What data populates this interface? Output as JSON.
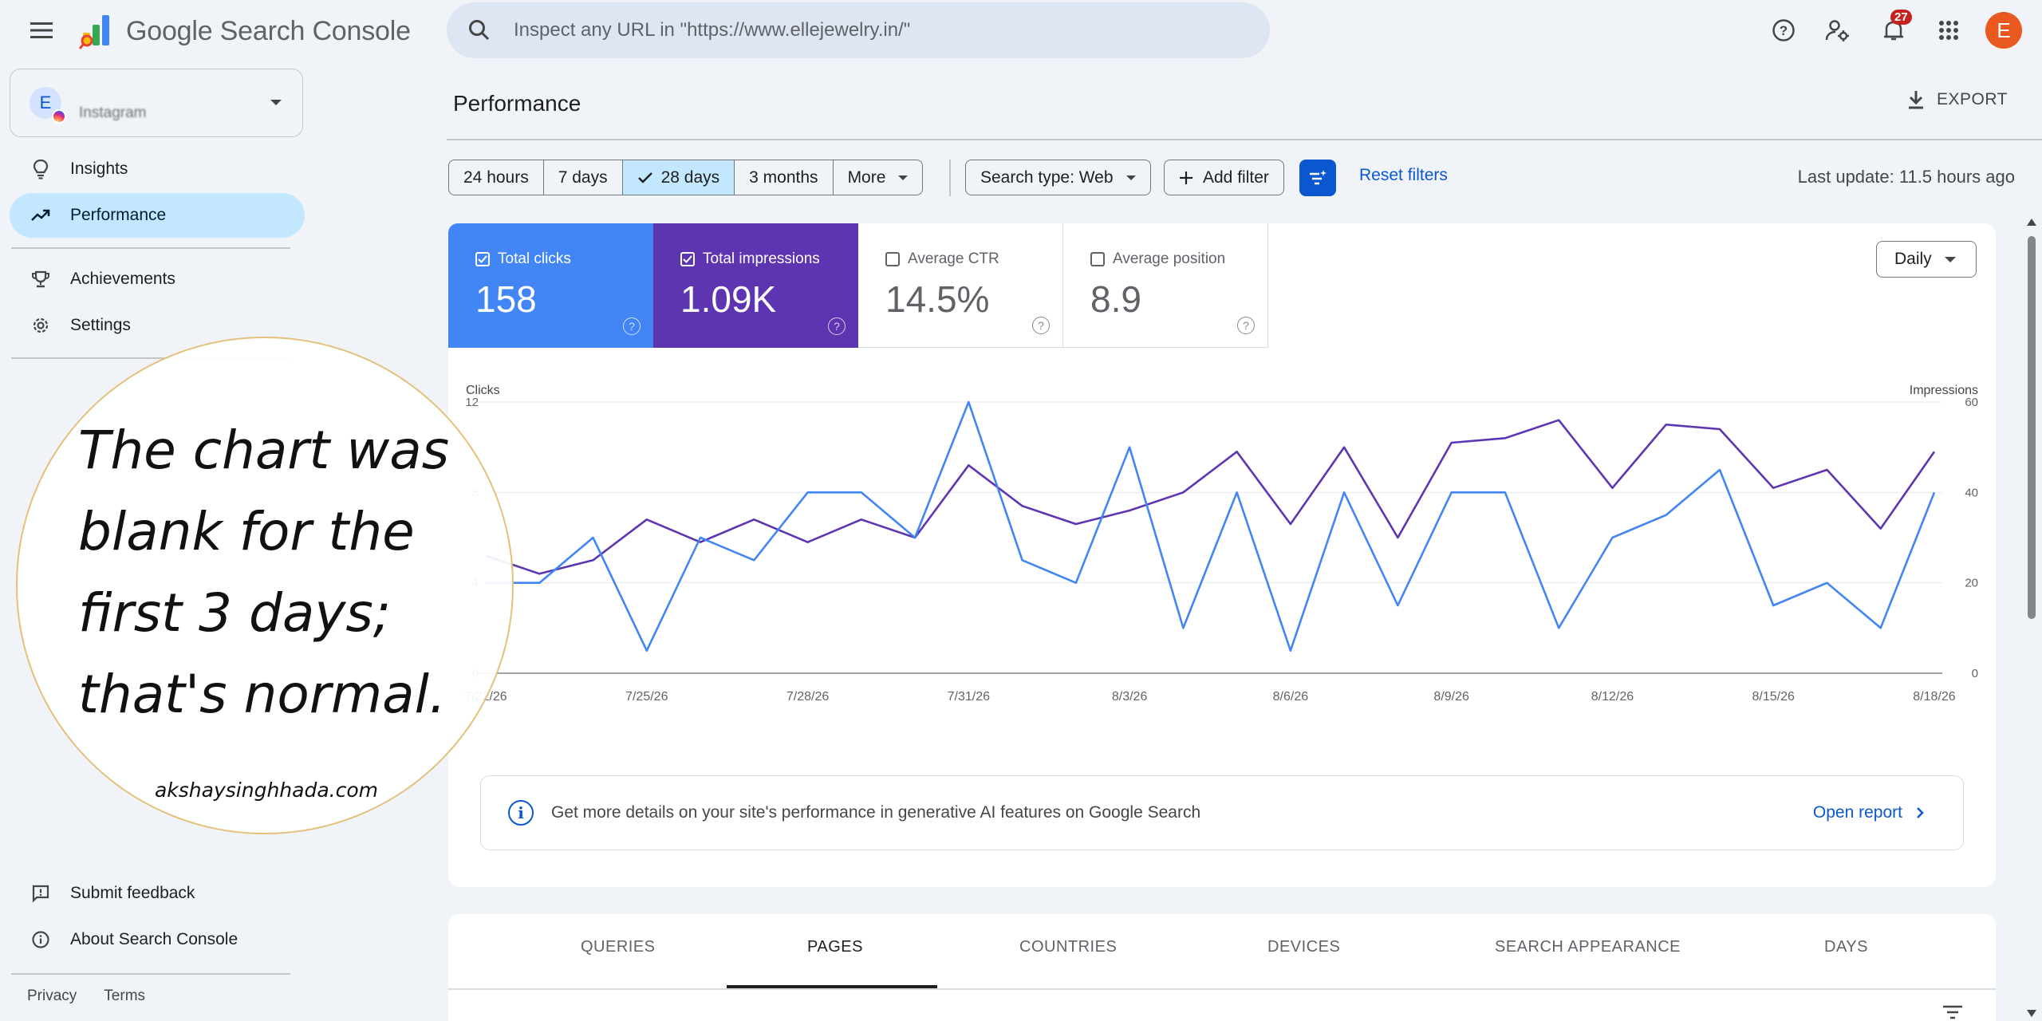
{
  "app": {
    "title": "Google Search Console"
  },
  "search": {
    "placeholder": "Inspect any URL in \"https://www.ellejewelry.in/\""
  },
  "header": {
    "notifications_count": "27",
    "avatar_letter": "E"
  },
  "property": {
    "avatar_letter": "E",
    "name": "Instagram"
  },
  "sidebar": {
    "items": [
      {
        "label": "Insights",
        "icon": "lightbulb-icon"
      },
      {
        "label": "Performance",
        "icon": "trending-up-icon",
        "active": true
      },
      {
        "label": "Achievements",
        "icon": "trophy-icon"
      },
      {
        "label": "Settings",
        "icon": "gear-icon"
      }
    ],
    "bottom": [
      {
        "label": "Submit feedback",
        "icon": "feedback-icon"
      },
      {
        "label": "About Search Console",
        "icon": "info-icon"
      }
    ],
    "footer": {
      "privacy": "Privacy",
      "terms": "Terms"
    }
  },
  "quote": {
    "text": "The chart was blank for the first 3 days; that's normal.",
    "credit": "akshaysinghhada.com"
  },
  "main": {
    "title": "Performance",
    "export_label": "EXPORT",
    "date_ranges": [
      "24 hours",
      "7 days",
      "28 days",
      "3 months",
      "More"
    ],
    "selected_range": "28 days",
    "search_type": "Search type: Web",
    "add_filter": "Add filter",
    "reset_filters": "Reset filters",
    "last_update": "Last update: 11.5 hours ago",
    "granularity": "Daily",
    "metrics": {
      "clicks": {
        "label": "Total clicks",
        "value": "158",
        "checked": true,
        "color": "#4285f4"
      },
      "impressions": {
        "label": "Total impressions",
        "value": "1.09K",
        "checked": true,
        "color": "#5e35b1"
      },
      "ctr": {
        "label": "Average CTR",
        "value": "14.5%",
        "checked": false
      },
      "position": {
        "label": "Average position",
        "value": "8.9",
        "checked": false
      }
    },
    "ai_banner": {
      "text": "Get more details on your site's performance in generative AI features on Google Search",
      "link": "Open report"
    },
    "tabs": [
      "QUERIES",
      "PAGES",
      "COUNTRIES",
      "DEVICES",
      "SEARCH APPEARANCE",
      "DAYS"
    ],
    "selected_tab": "PAGES"
  },
  "chart_data": {
    "type": "line",
    "ylabel_left": "Clicks",
    "ylabel_right": "Impressions",
    "yticks_left": [
      "0",
      "4",
      "8",
      "12"
    ],
    "yticks_right": [
      "0",
      "20",
      "40",
      "60"
    ],
    "ylim_left": [
      0,
      12
    ],
    "ylim_right": [
      0,
      60
    ],
    "x_tick_labels": [
      "7/22/26",
      "7/25/26",
      "7/28/26",
      "7/31/26",
      "8/3/26",
      "8/6/26",
      "8/9/26",
      "8/12/26",
      "8/15/26",
      "8/18/26"
    ],
    "x": [
      "7/22/26",
      "7/23/26",
      "7/24/26",
      "7/25/26",
      "7/26/26",
      "7/27/26",
      "7/28/26",
      "7/29/26",
      "7/30/26",
      "7/31/26",
      "8/1/26",
      "8/2/26",
      "8/3/26",
      "8/4/26",
      "8/5/26",
      "8/6/26",
      "8/7/26",
      "8/8/26",
      "8/9/26",
      "8/10/26",
      "8/11/26",
      "8/12/26",
      "8/13/26",
      "8/14/26",
      "8/15/26",
      "8/16/26",
      "8/17/26",
      "8/18/26"
    ],
    "series": [
      {
        "name": "Clicks",
        "axis": "left",
        "color": "#4285f4",
        "values": [
          4,
          4,
          6,
          1,
          6,
          5,
          8,
          8,
          6,
          12,
          5,
          4,
          10,
          2,
          8,
          1,
          8,
          3,
          8,
          8,
          2,
          6,
          7,
          9,
          3,
          4,
          2,
          8
        ]
      },
      {
        "name": "Impressions",
        "axis": "right",
        "color": "#5e35b1",
        "values": [
          26,
          22,
          25,
          34,
          29,
          34,
          29,
          34,
          30,
          46,
          37,
          33,
          36,
          40,
          49,
          33,
          50,
          30,
          51,
          52,
          56,
          41,
          55,
          54,
          41,
          45,
          32,
          49
        ]
      }
    ],
    "grid": true
  }
}
